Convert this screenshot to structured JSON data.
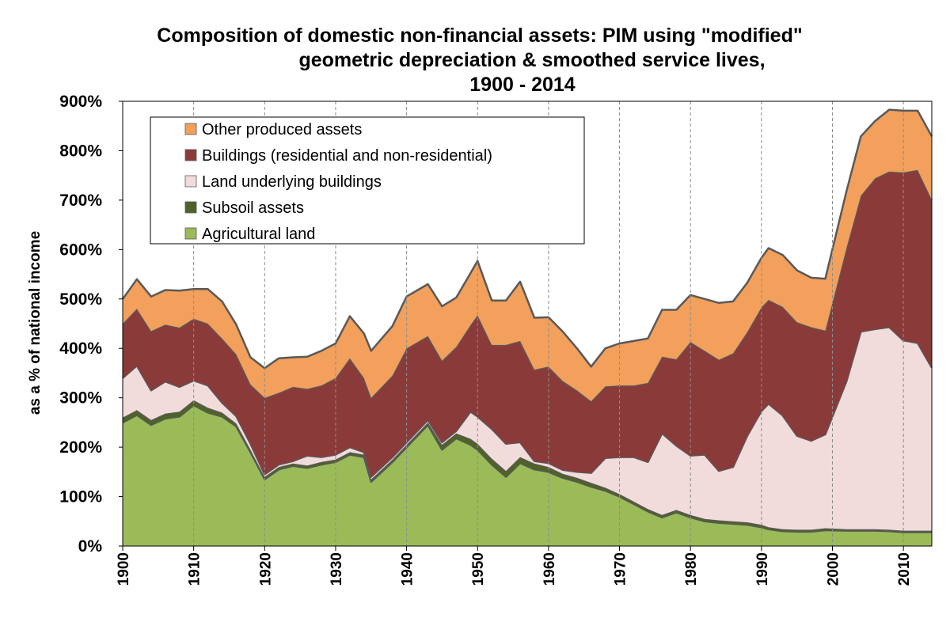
{
  "chart_data": {
    "type": "area",
    "stacked": true,
    "title_lines": [
      "Composition of domestic non-financial assets: PIM using \"modified\"",
      "geometric depreciation & smoothed service lives,",
      "1900 - 2014"
    ],
    "xlabel": "",
    "ylabel": "as a % of national income",
    "xlim": [
      1900,
      2014
    ],
    "ylim": [
      0,
      900
    ],
    "x_ticks": [
      "1900",
      "1910",
      "1920",
      "1930",
      "1940",
      "1950",
      "1960",
      "1970",
      "1980",
      "1990",
      "2000",
      "2010"
    ],
    "y_ticks": [
      "0%",
      "100%",
      "200%",
      "300%",
      "400%",
      "500%",
      "600%",
      "700%",
      "800%",
      "900%"
    ],
    "grid": "vertical-dashed",
    "legend_position": "top-left",
    "x": [
      1900,
      1902,
      1904,
      1906,
      1908,
      1910,
      1912,
      1914,
      1916,
      1918,
      1920,
      1922,
      1924,
      1926,
      1928,
      1930,
      1932,
      1934,
      1935,
      1938,
      1940,
      1943,
      1945,
      1947,
      1949,
      1950,
      1952,
      1954,
      1956,
      1958,
      1960,
      1962,
      1964,
      1966,
      1968,
      1970,
      1972,
      1974,
      1976,
      1978,
      1980,
      1982,
      1984,
      1986,
      1988,
      1990,
      1991,
      1993,
      1995,
      1997,
      1999,
      2002,
      2004,
      2006,
      2008,
      2010,
      2012,
      2014
    ],
    "series": [
      {
        "name": "Agricultural land",
        "color": "#9bbb59",
        "values": [
          250,
          265,
          245,
          258,
          262,
          285,
          270,
          262,
          242,
          190,
          135,
          155,
          162,
          158,
          165,
          170,
          185,
          180,
          130,
          170,
          200,
          245,
          195,
          218,
          205,
          195,
          165,
          140,
          168,
          155,
          150,
          138,
          130,
          120,
          112,
          100,
          85,
          70,
          58,
          68,
          58,
          50,
          47,
          45,
          43,
          38,
          34,
          30,
          29,
          29,
          32,
          31,
          31,
          31,
          30,
          28,
          28,
          28
        ]
      },
      {
        "name": "Subsoil assets",
        "color": "#4f6228",
        "values": [
          10,
          10,
          10,
          10,
          10,
          10,
          10,
          8,
          6,
          5,
          5,
          5,
          5,
          5,
          5,
          5,
          5,
          5,
          5,
          5,
          5,
          5,
          10,
          10,
          12,
          12,
          12,
          12,
          12,
          12,
          10,
          8,
          8,
          8,
          6,
          5,
          5,
          5,
          5,
          5,
          5,
          5,
          5,
          5,
          5,
          5,
          4,
          4,
          4,
          4,
          4,
          3,
          3,
          3,
          3,
          3,
          3,
          3
        ]
      },
      {
        "name": "Land underlying buildings",
        "color": "#f2dcdb",
        "values": [
          80,
          90,
          60,
          65,
          50,
          40,
          45,
          20,
          15,
          12,
          5,
          5,
          5,
          20,
          10,
          10,
          10,
          5,
          5,
          5,
          5,
          5,
          5,
          5,
          55,
          55,
          60,
          55,
          30,
          5,
          8,
          8,
          12,
          20,
          60,
          75,
          90,
          95,
          165,
          130,
          120,
          130,
          100,
          110,
          175,
          230,
          250,
          230,
          190,
          180,
          190,
          300,
          400,
          405,
          410,
          385,
          380,
          330
        ]
      },
      {
        "name": "Buildings (residential and non-residential)",
        "color": "#8b3a3a",
        "values": [
          110,
          115,
          120,
          115,
          120,
          125,
          125,
          130,
          125,
          120,
          155,
          145,
          150,
          135,
          145,
          155,
          180,
          150,
          160,
          165,
          190,
          170,
          165,
          170,
          175,
          205,
          170,
          200,
          205,
          185,
          195,
          180,
          165,
          145,
          145,
          145,
          145,
          160,
          155,
          175,
          230,
          210,
          225,
          230,
          210,
          210,
          210,
          220,
          230,
          230,
          210,
          270,
          275,
          305,
          315,
          340,
          350,
          340
        ]
      },
      {
        "name": "Other produced assets",
        "color": "#f2a05c",
        "values": [
          50,
          60,
          70,
          70,
          75,
          60,
          70,
          75,
          60,
          55,
          60,
          70,
          60,
          65,
          70,
          70,
          85,
          90,
          95,
          100,
          105,
          105,
          110,
          100,
          105,
          110,
          90,
          90,
          120,
          105,
          100,
          100,
          85,
          70,
          77,
          85,
          90,
          90,
          95,
          100,
          95,
          105,
          115,
          105,
          100,
          100,
          105,
          105,
          105,
          100,
          105,
          115,
          120,
          116,
          125,
          125,
          120,
          128
        ]
      }
    ]
  }
}
